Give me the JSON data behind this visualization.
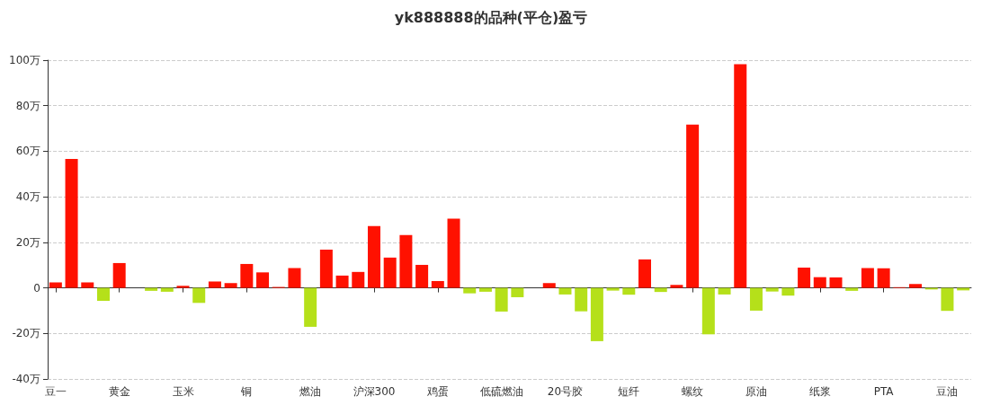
{
  "chart_data": {
    "type": "bar",
    "title": "yk888888的品种(平仓)盈亏",
    "categories": [
      "豆一",
      null,
      null,
      null,
      "黄金",
      null,
      null,
      null,
      "玉米",
      null,
      null,
      null,
      "铜",
      null,
      null,
      null,
      "燃油",
      null,
      null,
      null,
      "沪深300",
      null,
      null,
      null,
      "鸡蛋",
      null,
      null,
      null,
      "低硫燃油",
      null,
      null,
      null,
      "20号胶",
      null,
      null,
      null,
      "短纤",
      null,
      null,
      null,
      "螺纹",
      null,
      null,
      null,
      "原油",
      null,
      null,
      null,
      "纸浆",
      null,
      null,
      null,
      "PTA",
      null,
      null,
      null,
      "豆油",
      null
    ],
    "values": [
      2.4,
      56.6,
      2.4,
      -5.7,
      10.9,
      0,
      -1.3,
      -1.7,
      0.9,
      -6.6,
      2.8,
      2.1,
      10.5,
      6.8,
      0.4,
      8.7,
      -17.1,
      16.8,
      5.4,
      7.0,
      27.1,
      13.3,
      23.2,
      10.1,
      3.0,
      30.4,
      -2.4,
      -1.7,
      -10.4,
      -4.1,
      0,
      2.1,
      -2.9,
      -10.3,
      -23.4,
      -1.2,
      -3.0,
      12.5,
      -1.8,
      1.3,
      71.7,
      -20.4,
      -2.9,
      98.2,
      -10.0,
      -1.6,
      -3.4,
      8.9,
      4.7,
      4.6,
      -1.3,
      8.7,
      8.6,
      0.3,
      1.7,
      -0.7,
      -10.1,
      -1.1
    ],
    "colors": [
      "#ff1100",
      "#ff1100",
      "#ff1100",
      "#b5e01a",
      "#ff1100",
      "#ff1100",
      "#b5e01a",
      "#b5e01a",
      "#ff1100",
      "#b5e01a",
      "#ff1100",
      "#ff1100",
      "#ff1100",
      "#ff1100",
      "#ff1100",
      "#ff1100",
      "#b5e01a",
      "#ff1100",
      "#ff1100",
      "#ff1100",
      "#ff1100",
      "#ff1100",
      "#ff1100",
      "#ff1100",
      "#ff1100",
      "#ff1100",
      "#b5e01a",
      "#b5e01a",
      "#b5e01a",
      "#b5e01a",
      "#b5e01a",
      "#ff1100",
      "#b5e01a",
      "#b5e01a",
      "#b5e01a",
      "#b5e01a",
      "#b5e01a",
      "#ff1100",
      "#b5e01a",
      "#ff1100",
      "#ff1100",
      "#b5e01a",
      "#b5e01a",
      "#ff1100",
      "#b5e01a",
      "#b5e01a",
      "#b5e01a",
      "#ff1100",
      "#ff1100",
      "#ff1100",
      "#b5e01a",
      "#ff1100",
      "#ff1100",
      "#ff1100",
      "#ff1100",
      "#b5e01a",
      "#b5e01a",
      "#b5e01a"
    ],
    "ylim": [
      -40,
      100
    ],
    "yticks": [
      {
        "value": -40,
        "label": "-40万"
      },
      {
        "value": -20,
        "label": "-20万"
      },
      {
        "value": 0,
        "label": "0"
      },
      {
        "value": 20,
        "label": "20万"
      },
      {
        "value": 40,
        "label": "40万"
      },
      {
        "value": 60,
        "label": "60万"
      },
      {
        "value": 80,
        "label": "80万"
      },
      {
        "value": 100,
        "label": "100万"
      }
    ],
    "grid": "y"
  }
}
